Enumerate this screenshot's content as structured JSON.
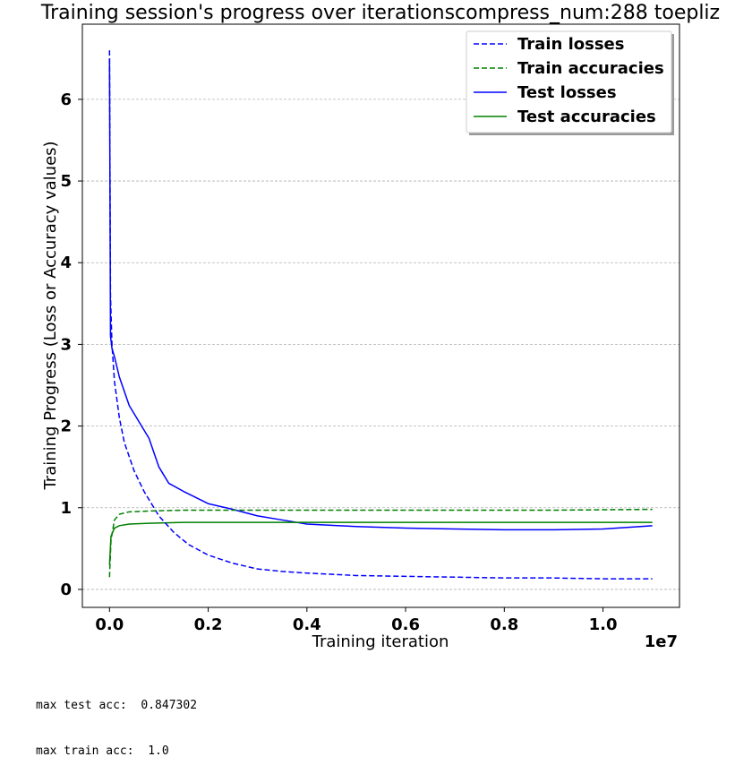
{
  "chart_data": {
    "type": "line",
    "title": "Training session's progress over iterationscompress_num:288 toepliz",
    "xlabel": "Training iteration",
    "ylabel": "Training Progress (Loss or Accuracy values)",
    "x_offset_label": "1e7",
    "xlim": [
      -0.055,
      1.155
    ],
    "ylim": [
      -0.22,
      6.92
    ],
    "x_ticks": [
      0.0,
      0.2,
      0.4,
      0.6,
      0.8,
      1.0
    ],
    "x_tick_labels": [
      "0.0",
      "0.2",
      "0.4",
      "0.6",
      "0.8",
      "1.0"
    ],
    "y_ticks": [
      0,
      1,
      2,
      3,
      4,
      5,
      6
    ],
    "y_tick_labels": [
      "0",
      "1",
      "2",
      "3",
      "4",
      "5",
      "6"
    ],
    "grid": "horizontal-dashed",
    "legend_position": "top-right",
    "colors": {
      "blue": "#0000ff",
      "green": "#008000"
    },
    "series": [
      {
        "name": "Train losses",
        "style": "dashed",
        "color": "#0000ff",
        "x": [
          0.0,
          0.002,
          0.005,
          0.01,
          0.02,
          0.03,
          0.05,
          0.07,
          0.1,
          0.13,
          0.16,
          0.2,
          0.25,
          0.3,
          0.35,
          0.4,
          0.5,
          0.6,
          0.7,
          0.8,
          0.9,
          1.0,
          1.1
        ],
        "y": [
          6.6,
          3.6,
          3.0,
          2.55,
          2.1,
          1.8,
          1.45,
          1.2,
          0.9,
          0.7,
          0.55,
          0.42,
          0.32,
          0.25,
          0.22,
          0.2,
          0.17,
          0.16,
          0.15,
          0.14,
          0.14,
          0.13,
          0.13
        ]
      },
      {
        "name": "Train accuracies",
        "style": "dashed",
        "color": "#008000",
        "x": [
          0.0,
          0.003,
          0.01,
          0.02,
          0.04,
          0.08,
          0.15,
          0.3,
          0.5,
          0.7,
          0.9,
          1.1
        ],
        "y": [
          0.15,
          0.6,
          0.85,
          0.92,
          0.95,
          0.96,
          0.97,
          0.97,
          0.97,
          0.97,
          0.97,
          0.98
        ]
      },
      {
        "name": "Test losses",
        "style": "solid",
        "color": "#0000ff",
        "x": [
          0.0,
          0.002,
          0.005,
          0.01,
          0.02,
          0.04,
          0.06,
          0.08,
          0.1,
          0.12,
          0.15,
          0.2,
          0.25,
          0.3,
          0.35,
          0.4,
          0.5,
          0.6,
          0.7,
          0.8,
          0.9,
          1.0,
          1.1
        ],
        "y": [
          6.5,
          3.1,
          2.95,
          2.85,
          2.6,
          2.25,
          2.05,
          1.85,
          1.5,
          1.3,
          1.2,
          1.05,
          0.98,
          0.9,
          0.85,
          0.8,
          0.77,
          0.75,
          0.74,
          0.73,
          0.73,
          0.74,
          0.78
        ]
      },
      {
        "name": "Test accuracies",
        "style": "solid",
        "color": "#008000",
        "x": [
          0.0,
          0.003,
          0.01,
          0.02,
          0.04,
          0.08,
          0.15,
          0.3,
          0.5,
          0.7,
          0.9,
          1.1
        ],
        "y": [
          0.3,
          0.65,
          0.75,
          0.78,
          0.8,
          0.81,
          0.82,
          0.82,
          0.82,
          0.82,
          0.82,
          0.82
        ]
      }
    ]
  },
  "stats": {
    "max_test_acc_label": "max test acc:",
    "max_test_acc_value": "0.847302",
    "max_train_acc_label": "max train acc:",
    "max_train_acc_value": "1.0"
  }
}
